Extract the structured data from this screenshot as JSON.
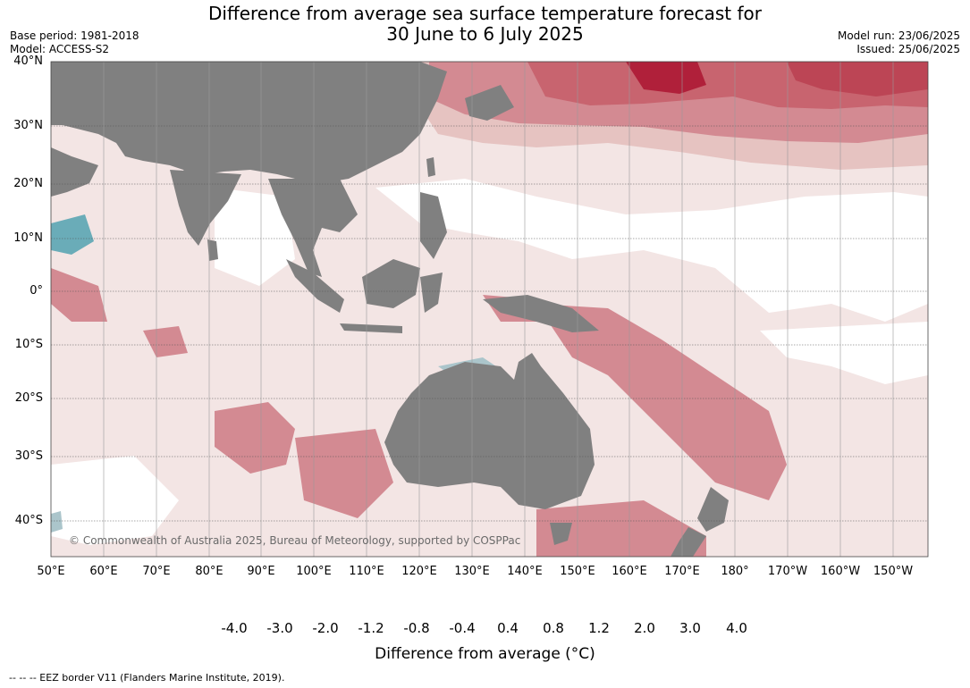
{
  "title": {
    "line1": "Difference from average sea surface temperature forecast for",
    "line2": "30 June to 6 July 2025"
  },
  "meta": {
    "base_period": "Base period: 1981-2018",
    "model": "Model: ACCESS-S2",
    "model_run": "Model run: 23/06/2025",
    "issued": "Issued: 25/06/2025"
  },
  "map": {
    "latitude_labels": [
      "40°N",
      "30°N",
      "20°N",
      "10°N",
      "0°",
      "10°S",
      "20°S",
      "30°S",
      "40°S"
    ],
    "longitude_labels": [
      "50°E",
      "60°E",
      "70°E",
      "80°E",
      "90°E",
      "100°E",
      "110°E",
      "120°E",
      "130°E",
      "140°E",
      "150°E",
      "160°E",
      "170°E",
      "180°",
      "170°W",
      "160°W",
      "150°W"
    ],
    "copyright": "© Commonwealth of Australia 2025, Bureau of Meteorology, supported by COSPPac",
    "colors": {
      "land": "#808080",
      "neutral": "#ffffff"
    }
  },
  "colorbar": {
    "title": "Difference from average (°C)",
    "ticks": [
      "-4.0",
      "-3.0",
      "-2.0",
      "-1.2",
      "-0.8",
      "-0.4",
      "0.4",
      "0.8",
      "1.2",
      "2.0",
      "3.0",
      "4.0"
    ],
    "colors": [
      "#3d7f87",
      "#4aa0b1",
      "#6aacb8",
      "#8bb8c3",
      "#abc5cb",
      "#d5d9da",
      "#ffffff",
      "#f3e5e4",
      "#e6c3c1",
      "#d38a92",
      "#c8646f",
      "#bc4555",
      "#b0203a"
    ]
  },
  "footer": {
    "eez": "--  --  -- EEZ border V11 (Flanders Marine Institute, 2019)."
  }
}
